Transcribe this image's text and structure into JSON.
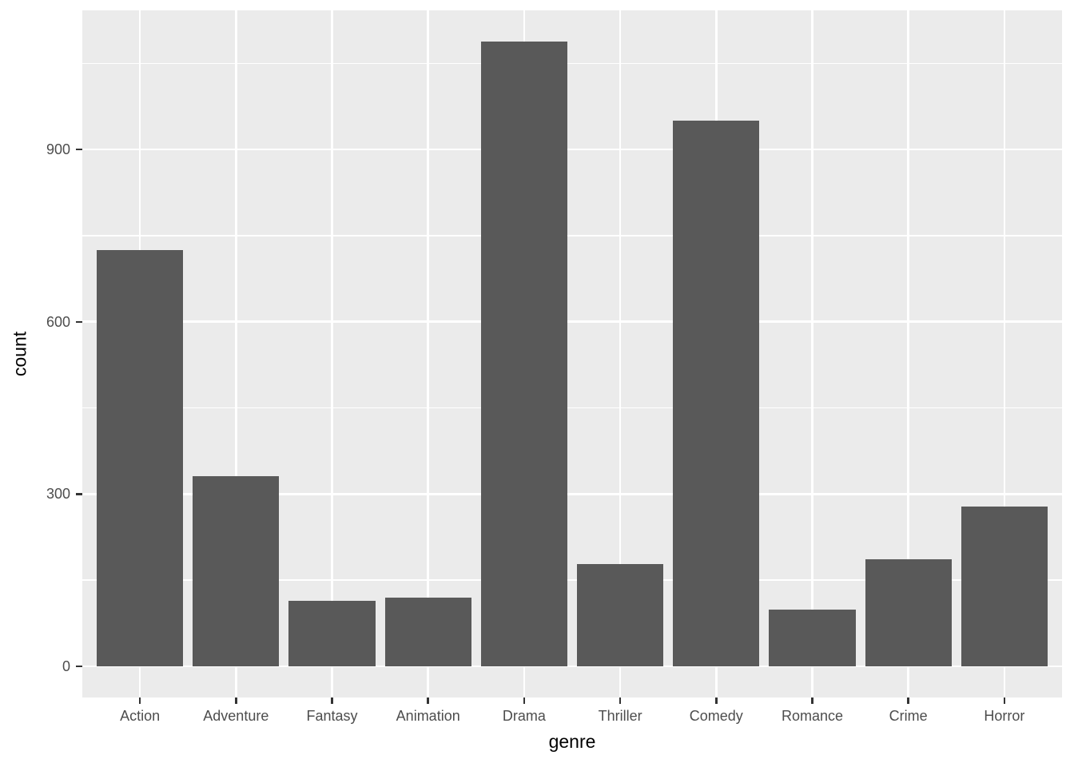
{
  "chart_data": {
    "type": "bar",
    "title": "",
    "xlabel": "genre",
    "ylabel": "count",
    "categories": [
      "Action",
      "Adventure",
      "Fantasy",
      "Animation",
      "Drama",
      "Thriller",
      "Comedy",
      "Romance",
      "Crime",
      "Horror"
    ],
    "values": [
      725,
      331,
      114,
      120,
      1088,
      178,
      950,
      98,
      187,
      278
    ],
    "yticks": [
      0,
      300,
      600,
      900
    ],
    "ytick_labels": [
      "0",
      "300",
      "600",
      "900"
    ],
    "yminor": [
      150,
      450,
      750,
      1050
    ],
    "ylim": [
      -54.4,
      1142.4
    ],
    "grid": true,
    "legend_position": "none",
    "bar_rel_width": 0.9,
    "colors": {
      "bar_fill": "#595959",
      "panel_background": "#EBEBEB",
      "gridline": "#FFFFFF",
      "tick_label": "#4D4D4D",
      "axis_title": "#000000",
      "tick_mark": "#333333",
      "figure_background": "#FFFFFF"
    }
  }
}
